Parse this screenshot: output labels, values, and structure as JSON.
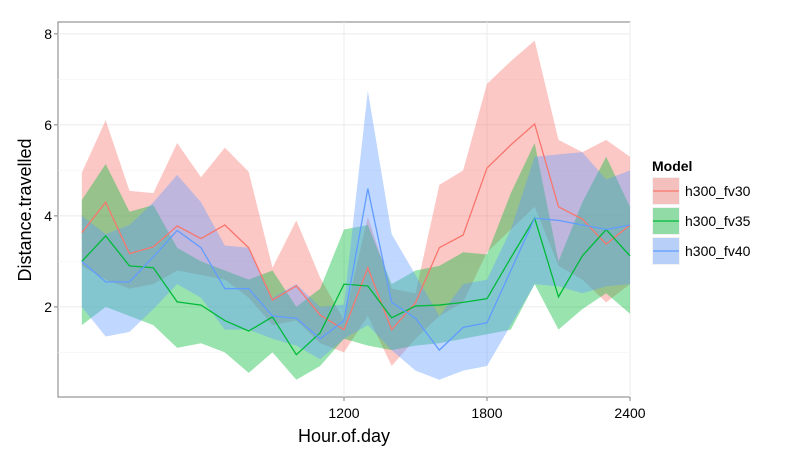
{
  "chart_data": {
    "type": "line",
    "xlabel": "Hour.of.day",
    "ylabel": "Distance.travelled",
    "xlim": [
      0,
      2400
    ],
    "ylim": [
      0.02,
      8.26
    ],
    "xticks": [
      1200,
      1800,
      2400
    ],
    "yticks": [
      2,
      4,
      6,
      8
    ],
    "grid": true,
    "legend_title": "Model",
    "legend_position": "right",
    "x": [
      100,
      200,
      300,
      400,
      500,
      600,
      700,
      800,
      900,
      1000,
      1100,
      1200,
      1300,
      1400,
      1500,
      1600,
      1700,
      1800,
      1900,
      2000,
      2100,
      2200,
      2300,
      2400
    ],
    "series": [
      {
        "name": "h300_fv30",
        "color": "#F8766D",
        "values": [
          3.63,
          4.3,
          3.17,
          3.32,
          3.78,
          3.5,
          3.8,
          3.3,
          2.15,
          2.46,
          1.82,
          1.5,
          2.86,
          1.5,
          2.09,
          3.3,
          3.58,
          5.05,
          5.56,
          6.02,
          4.2,
          3.93,
          3.38,
          3.8
        ],
        "upper": [
          4.95,
          6.1,
          4.55,
          4.5,
          5.6,
          4.85,
          5.5,
          4.97,
          2.86,
          3.9,
          2.64,
          1.71,
          3.98,
          2.4,
          2.3,
          4.68,
          5.0,
          6.9,
          7.4,
          7.85,
          5.67,
          5.4,
          5.67,
          5.3
        ],
        "lower": [
          2.9,
          2.6,
          2.4,
          2.5,
          2.8,
          2.7,
          2.6,
          2.2,
          1.6,
          1.7,
          1.2,
          1.0,
          1.8,
          0.7,
          1.3,
          1.8,
          2.1,
          3.2,
          3.7,
          4.2,
          2.9,
          2.6,
          2.1,
          2.5
        ]
      },
      {
        "name": "h300_fv35",
        "color": "#00BA38",
        "values": [
          3.0,
          3.56,
          2.9,
          2.86,
          2.11,
          2.04,
          1.7,
          1.47,
          1.78,
          0.95,
          1.43,
          2.5,
          2.46,
          1.76,
          2.02,
          2.04,
          2.1,
          2.18,
          3.08,
          3.95,
          2.22,
          3.12,
          3.7,
          3.12
        ],
        "upper": [
          4.35,
          5.14,
          4.09,
          4.24,
          3.3,
          3.0,
          2.8,
          2.6,
          2.8,
          2.0,
          2.4,
          3.7,
          3.8,
          2.5,
          2.8,
          2.9,
          3.2,
          3.15,
          4.5,
          5.6,
          3.0,
          4.3,
          5.3,
          4.2
        ],
        "lower": [
          1.6,
          2.0,
          1.8,
          1.6,
          1.1,
          1.2,
          1.0,
          0.55,
          1.0,
          0.4,
          0.7,
          1.3,
          1.15,
          1.05,
          1.15,
          1.2,
          1.3,
          1.4,
          1.5,
          2.5,
          1.5,
          1.95,
          2.3,
          1.85
        ]
      },
      {
        "name": "h300_fv40",
        "color": "#619CFF",
        "values": [
          3.0,
          2.55,
          2.55,
          3.1,
          3.68,
          3.3,
          2.4,
          2.4,
          1.8,
          1.75,
          1.3,
          1.7,
          4.6,
          2.1,
          1.75,
          1.05,
          1.55,
          1.65,
          2.8,
          3.95,
          3.9,
          3.8,
          3.7,
          3.8
        ],
        "upper": [
          4.0,
          3.6,
          3.8,
          4.3,
          4.9,
          4.3,
          3.35,
          3.3,
          2.2,
          2.5,
          2.0,
          2.05,
          6.75,
          3.6,
          2.7,
          1.8,
          2.5,
          2.6,
          3.7,
          5.3,
          5.35,
          5.4,
          4.8,
          5.0
        ],
        "lower": [
          2.0,
          1.35,
          1.45,
          1.95,
          2.5,
          2.2,
          1.5,
          1.5,
          1.3,
          1.15,
          0.85,
          1.3,
          1.6,
          1.05,
          0.6,
          0.4,
          0.6,
          0.7,
          1.6,
          2.5,
          2.45,
          2.3,
          2.45,
          2.5
        ]
      }
    ]
  }
}
